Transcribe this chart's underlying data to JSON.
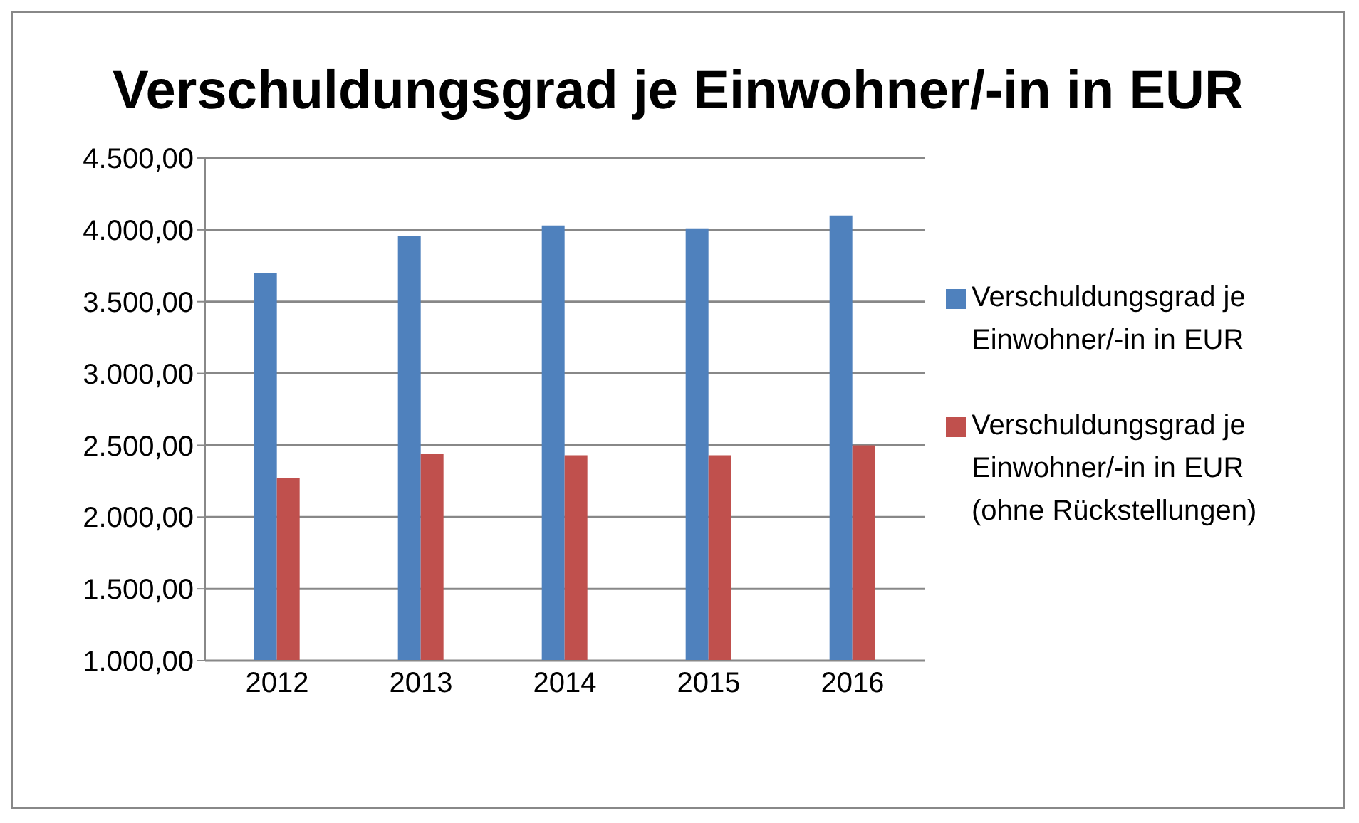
{
  "chart_data": {
    "type": "bar",
    "title": "Verschuldungsgrad je Einwohner/-in in EUR",
    "categories": [
      "2012",
      "2013",
      "2014",
      "2015",
      "2016"
    ],
    "series": [
      {
        "name": "Verschuldungsgrad je Einwohner/-in in EUR",
        "color": "#4f81bd",
        "values": [
          3700,
          3960,
          4030,
          4010,
          4100
        ]
      },
      {
        "name": "Verschuldungsgrad je Einwohner/-in in EUR (ohne Rückstellungen)",
        "color": "#c0504d",
        "values": [
          2270,
          2440,
          2430,
          2430,
          2500
        ]
      }
    ],
    "ylim": [
      1000,
      4500
    ],
    "yticks": [
      {
        "value": 1000,
        "label": "1.000,00"
      },
      {
        "value": 1500,
        "label": "1.500,00"
      },
      {
        "value": 2000,
        "label": "2.000,00"
      },
      {
        "value": 2500,
        "label": "2.500,00"
      },
      {
        "value": 3000,
        "label": "3.000,00"
      },
      {
        "value": 3500,
        "label": "3.500,00"
      },
      {
        "value": 4000,
        "label": "4.000,00"
      },
      {
        "value": 4500,
        "label": "4.500,00"
      }
    ],
    "grid": "y",
    "legend": "right"
  }
}
